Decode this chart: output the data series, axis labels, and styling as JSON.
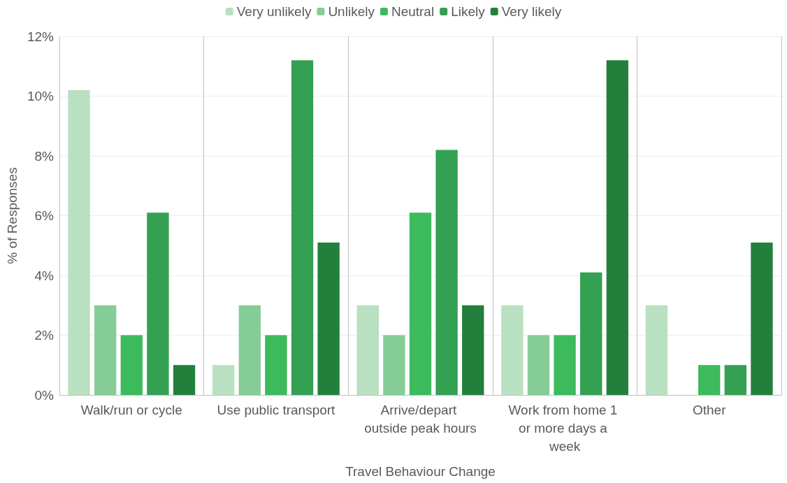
{
  "chart_data": {
    "type": "bar",
    "xlabel": "Travel Behaviour Change",
    "ylabel": "% of Responses",
    "categories": [
      "Walk/run or cycle",
      "Use public transport",
      "Arrive/depart outside peak hours",
      "Work from home 1 or more days a week",
      "Other"
    ],
    "series": [
      {
        "name": "Very unlikely",
        "color": "#b9e0c1",
        "values": [
          10.2,
          1,
          3,
          3,
          3
        ]
      },
      {
        "name": "Unlikely",
        "color": "#86cc96",
        "values": [
          3,
          3,
          2,
          2,
          0
        ]
      },
      {
        "name": "Neutral",
        "color": "#3cba5c",
        "values": [
          2,
          2,
          6.1,
          2,
          1
        ]
      },
      {
        "name": "Likely",
        "color": "#34a052",
        "values": [
          6.1,
          11.2,
          8.2,
          4.1,
          1
        ]
      },
      {
        "name": "Very likely",
        "color": "#22803c",
        "values": [
          1,
          5.1,
          3,
          11.2,
          5.1
        ]
      }
    ],
    "ylim": [
      0,
      12
    ],
    "yticks": [
      {
        "value": 0,
        "label": "0%"
      },
      {
        "value": 2,
        "label": "2%"
      },
      {
        "value": 4,
        "label": "4%"
      },
      {
        "value": 6,
        "label": "6%"
      },
      {
        "value": 8,
        "label": "8%"
      },
      {
        "value": 10,
        "label": "10%"
      },
      {
        "value": 12,
        "label": "12%"
      }
    ],
    "grid": true,
    "legend": "top"
  }
}
